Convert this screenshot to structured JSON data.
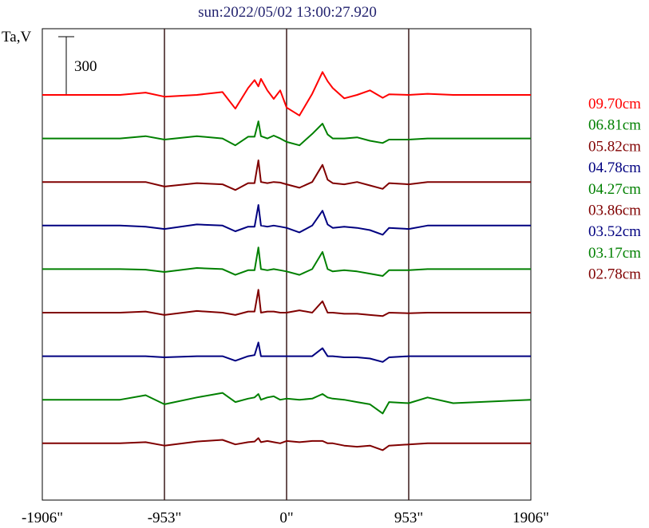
{
  "chart_data": {
    "type": "line",
    "title": "sun:2022/05/02 13:00:27.920",
    "ylabel": "Ta,V",
    "scale_bar": {
      "value": 300,
      "label": "300"
    },
    "x_ticks": [
      {
        "value": -1906,
        "label": "-1906\""
      },
      {
        "value": -953,
        "label": "-953\""
      },
      {
        "value": 0,
        "label": "0\""
      },
      {
        "value": 953,
        "label": "953\""
      },
      {
        "value": 1906,
        "label": "1906\""
      }
    ],
    "xlim": [
      -1906,
      1906
    ],
    "vlines": [
      -953,
      0,
      953
    ],
    "x": [
      -1906,
      -1300,
      -1100,
      -953,
      -700,
      -500,
      -400,
      -300,
      -250,
      -220,
      -200,
      -150,
      -100,
      -50,
      0,
      100,
      200,
      280,
      320,
      360,
      450,
      550,
      650,
      750,
      800,
      953,
      1100,
      1300,
      1906
    ],
    "series": [
      {
        "name": "09.70cm",
        "color": "#ff0000",
        "values": [
          0,
          0,
          20,
          -15,
          0,
          25,
          -120,
          60,
          130,
          75,
          140,
          40,
          -35,
          40,
          -110,
          -180,
          10,
          200,
          120,
          60,
          -30,
          0,
          40,
          -25,
          5,
          0,
          10,
          0,
          0
        ]
      },
      {
        "name": "06.81cm",
        "color": "#008000",
        "values": [
          0,
          0,
          20,
          -10,
          20,
          0,
          -60,
          15,
          15,
          150,
          20,
          0,
          25,
          0,
          -30,
          -60,
          40,
          130,
          35,
          0,
          0,
          10,
          -20,
          -40,
          -10,
          -10,
          0,
          0,
          0
        ]
      },
      {
        "name": "05.82cm",
        "color": "#800000",
        "values": [
          0,
          0,
          0,
          -40,
          -10,
          -20,
          -70,
          -10,
          -10,
          190,
          0,
          -10,
          0,
          -5,
          -20,
          -50,
          0,
          150,
          20,
          -10,
          -20,
          0,
          -30,
          -60,
          -10,
          -20,
          0,
          0,
          0
        ]
      },
      {
        "name": "04.78cm",
        "color": "#000080",
        "values": [
          0,
          0,
          -10,
          -30,
          10,
          0,
          -50,
          -10,
          -10,
          180,
          0,
          -10,
          0,
          -10,
          -20,
          -60,
          0,
          130,
          10,
          -20,
          -10,
          -20,
          -40,
          -80,
          -20,
          -30,
          0,
          0,
          0
        ]
      },
      {
        "name": "04.27cm",
        "color": "#008000",
        "values": [
          0,
          0,
          -5,
          -25,
          10,
          0,
          -50,
          -10,
          -10,
          190,
          0,
          -10,
          0,
          -10,
          -20,
          -50,
          0,
          150,
          0,
          -20,
          -10,
          -20,
          -40,
          -60,
          -10,
          -10,
          0,
          0,
          0
        ]
      },
      {
        "name": "03.86cm",
        "color": "#800000",
        "values": [
          0,
          0,
          10,
          -20,
          15,
          0,
          -20,
          10,
          10,
          200,
          0,
          10,
          10,
          0,
          0,
          20,
          0,
          100,
          0,
          0,
          -10,
          -10,
          -20,
          -30,
          0,
          -5,
          0,
          0,
          0
        ]
      },
      {
        "name": "03.52cm",
        "color": "#000080",
        "values": [
          0,
          0,
          0,
          -10,
          0,
          0,
          -40,
          0,
          10,
          120,
          0,
          0,
          0,
          0,
          0,
          0,
          0,
          70,
          0,
          0,
          -10,
          -10,
          -20,
          -50,
          -10,
          0,
          0,
          0,
          0
        ]
      },
      {
        "name": "03.17cm",
        "color": "#008000",
        "values": [
          0,
          0,
          40,
          -40,
          20,
          60,
          -20,
          10,
          20,
          50,
          0,
          20,
          30,
          0,
          10,
          0,
          10,
          50,
          20,
          10,
          0,
          -20,
          -40,
          -120,
          -20,
          -30,
          20,
          -30,
          0
        ]
      },
      {
        "name": "02.78cm",
        "color": "#800000",
        "values": [
          0,
          0,
          10,
          -20,
          15,
          30,
          -10,
          10,
          15,
          45,
          10,
          20,
          10,
          0,
          20,
          10,
          20,
          20,
          0,
          0,
          -20,
          -30,
          -20,
          -60,
          -20,
          -10,
          0,
          0,
          0
        ]
      }
    ]
  }
}
